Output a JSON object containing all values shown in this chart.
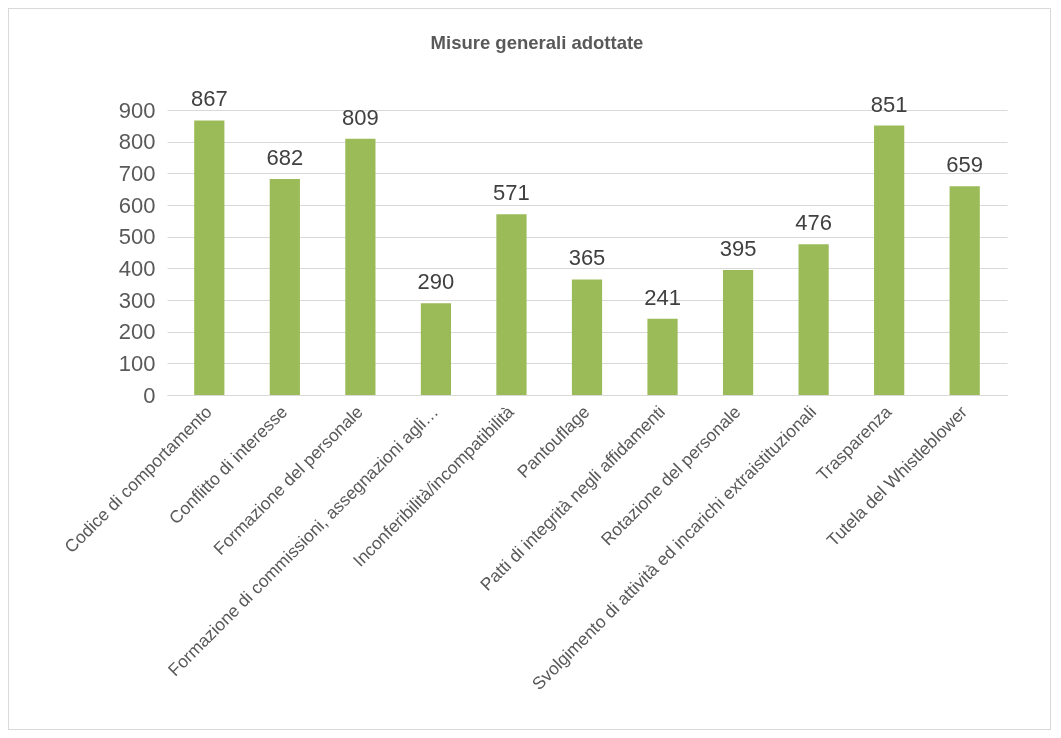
{
  "chart_data": {
    "type": "bar",
    "title": "Misure generali adottate",
    "categories": [
      "Codice di comportamento",
      "Conflitto di interesse",
      "Formazione del personale",
      "Formazione di commissioni, assegnazioni agli…",
      "Inconferibilità/incompatibilità",
      "Pantouflage",
      "Patti di integrità negli affidamenti",
      "Rotazione del personale",
      "Svolgimento di attività ed incarichi extraistituzionali",
      "Trasparenza",
      "Tutela del Whistleblower"
    ],
    "values": [
      867,
      682,
      809,
      290,
      571,
      365,
      241,
      395,
      476,
      851,
      659
    ],
    "color": "#9bbb59",
    "ylim": [
      0,
      900
    ],
    "yticks": [
      0,
      100,
      200,
      300,
      400,
      500,
      600,
      700,
      800,
      900
    ],
    "grid": "y",
    "data_labels": true
  }
}
